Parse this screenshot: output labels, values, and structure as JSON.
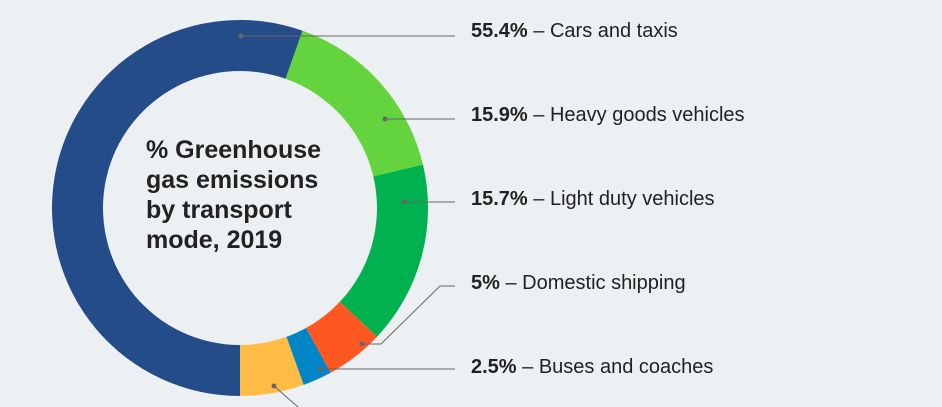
{
  "chart_data": {
    "type": "pie",
    "variant": "donut",
    "title": "% Greenhouse gas emissions by transport mode, 2019",
    "title_lines": [
      "% Greenhouse",
      "gas emissions",
      "by transport",
      "mode, 2019"
    ],
    "unit": "%",
    "slices": [
      {
        "name": "Cars and taxis",
        "value": 55.4,
        "value_label": "55.4%",
        "color": "#244c89"
      },
      {
        "name": "Heavy goods vehicles",
        "value": 15.9,
        "value_label": "15.9%",
        "color": "#63d43d"
      },
      {
        "name": "Light duty vehicles",
        "value": 15.7,
        "value_label": "15.7%",
        "color": "#00b14f"
      },
      {
        "name": "Domestic shipping",
        "value": 5,
        "value_label": "5%",
        "color": "#ff5722"
      },
      {
        "name": "Buses and coaches",
        "value": 2.5,
        "value_label": "2.5%",
        "color": "#0085c7"
      },
      {
        "name": "",
        "value": 5.5,
        "value_label": "",
        "color": "#ffbc45"
      }
    ],
    "separator": " – "
  }
}
